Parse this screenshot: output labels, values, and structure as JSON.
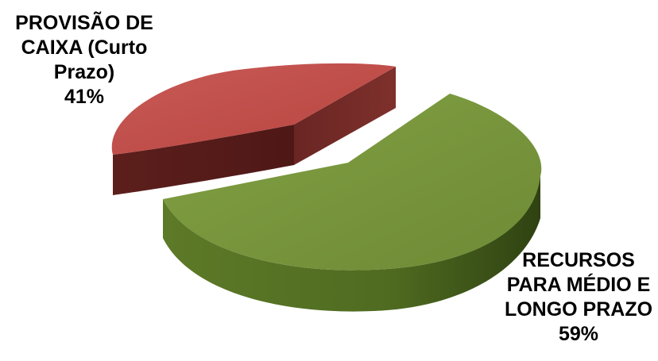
{
  "chart_data": {
    "type": "pie",
    "style": "3d-exploded",
    "title": "",
    "series": [
      {
        "name": "",
        "slices": [
          {
            "label_lines": [
              "PROVISÃO DE",
              "CAIXA (Curto",
              "Prazo)"
            ],
            "percent_label": "41%",
            "value": 41,
            "color": "#c0504d"
          },
          {
            "label_lines": [
              "RECURSOS",
              "PARA MÉDIO E",
              "LONGO PRAZO"
            ],
            "percent_label": "59%",
            "value": 59,
            "color": "#77933c"
          }
        ]
      }
    ]
  }
}
